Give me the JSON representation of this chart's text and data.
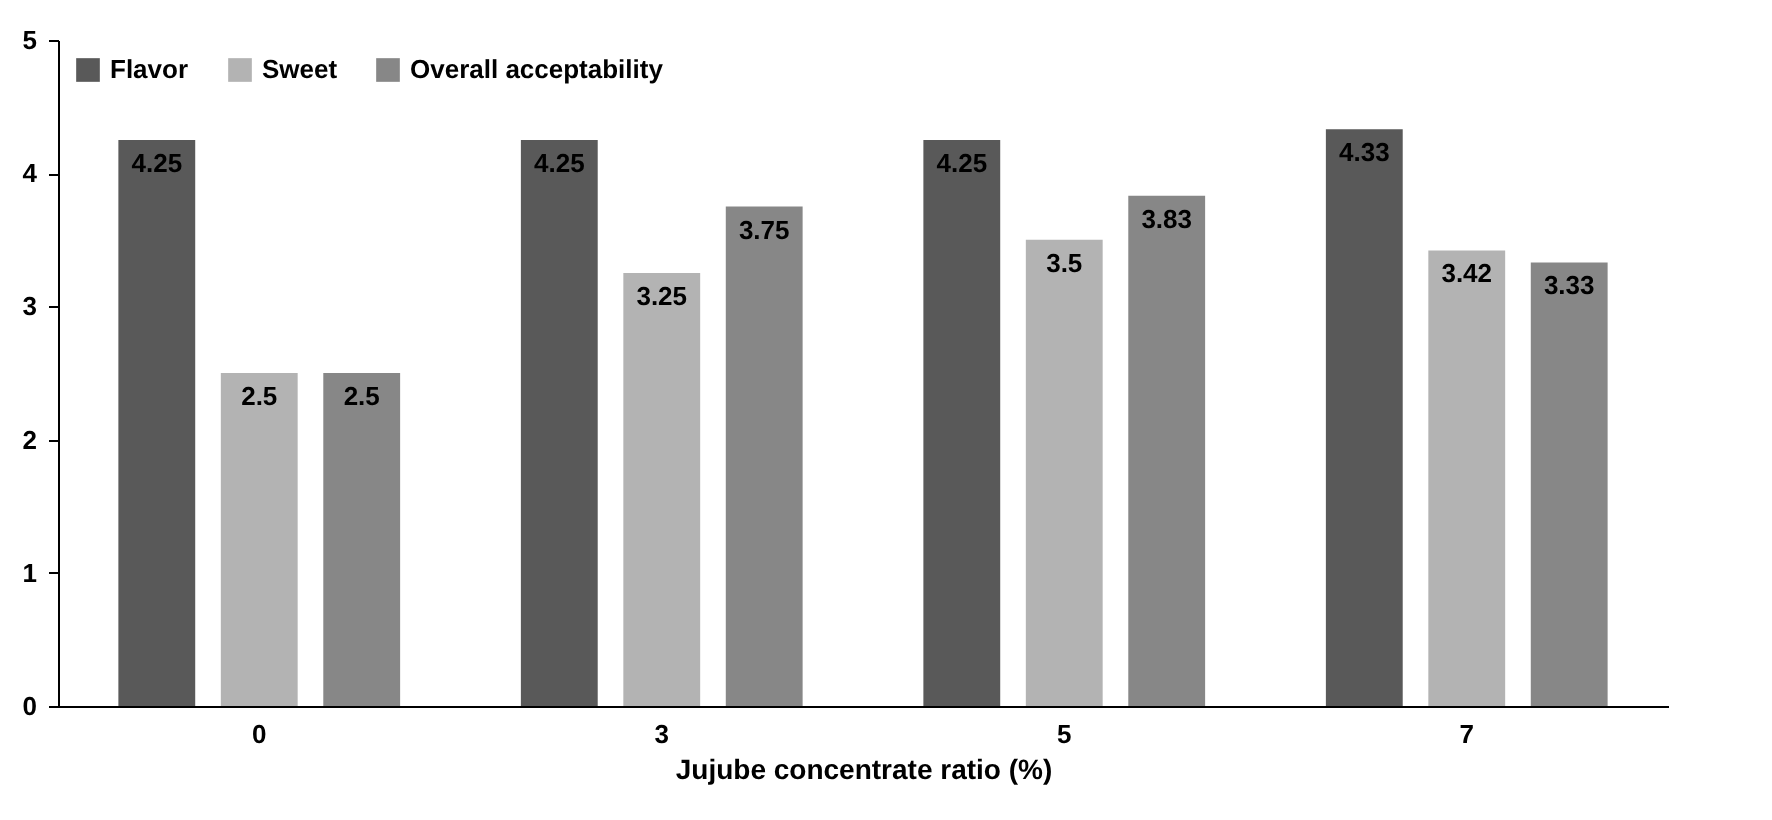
{
  "chart_data": {
    "type": "bar",
    "xlabel": "Jujube concentrate ratio (%)",
    "categories": [
      "0",
      "3",
      "5",
      "7"
    ],
    "series": [
      {
        "name": "Flavor",
        "color": "#595959",
        "values": [
          4.25,
          4.25,
          4.25,
          4.33
        ]
      },
      {
        "name": "Sweet",
        "color": "#b3b3b3",
        "values": [
          2.5,
          3.25,
          3.5,
          3.42
        ]
      },
      {
        "name": "Overall acceptability",
        "color": "#878787",
        "values": [
          2.5,
          3.75,
          3.83,
          3.33
        ]
      }
    ],
    "ylim": [
      0,
      5
    ],
    "yticks": [
      0,
      1,
      2,
      3,
      4,
      5
    ],
    "grid": false,
    "legend": "top left",
    "data_labels": true
  }
}
